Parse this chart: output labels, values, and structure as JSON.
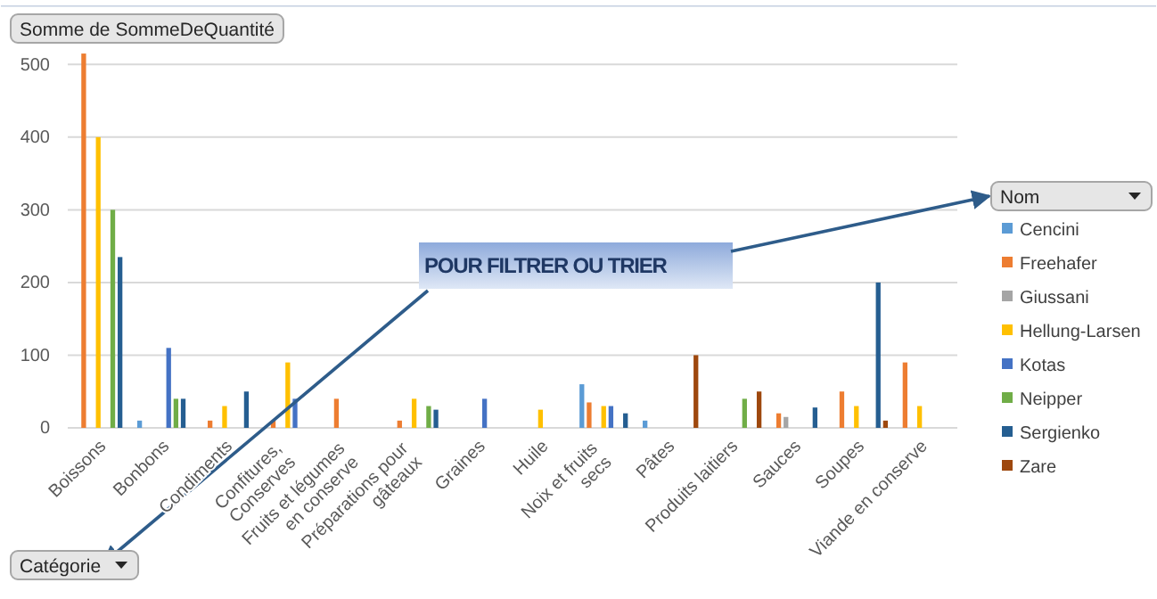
{
  "chart_data": {
    "type": "bar",
    "ylabel": "Somme de SommeDeQuantité",
    "xlabel": "Catégorie",
    "legend_title": "Nom",
    "annotations": [
      "POUR FILTRER OU TRIER"
    ],
    "categories": [
      "Boissons",
      "Bonbons",
      "Condiments",
      "Confitures, Conserves",
      "Fruits et légumes en conserve",
      "Préparations pour gâteaux",
      "Graines",
      "Huile",
      "Noix et fruits secs",
      "Pâtes",
      "Produits laitiers",
      "Sauces",
      "Soupes",
      "Viande en conserve"
    ],
    "series": [
      {
        "name": "Cencini",
        "color": "#5b9bd5",
        "values": [
          null,
          10,
          null,
          null,
          null,
          null,
          null,
          null,
          60,
          10,
          null,
          null,
          null,
          null
        ]
      },
      {
        "name": "Freehafer",
        "color": "#ed7d31",
        "values": [
          515,
          null,
          10,
          10,
          40,
          10,
          null,
          null,
          35,
          null,
          null,
          20,
          50,
          90
        ]
      },
      {
        "name": "Giussani",
        "color": "#a5a5a5",
        "values": [
          null,
          null,
          null,
          null,
          null,
          null,
          null,
          null,
          null,
          null,
          null,
          15,
          null,
          null
        ]
      },
      {
        "name": "Hellung-Larsen",
        "color": "#ffc000",
        "values": [
          400,
          null,
          30,
          90,
          null,
          40,
          null,
          25,
          30,
          null,
          null,
          null,
          30,
          30
        ]
      },
      {
        "name": "Kotas",
        "color": "#4472c4",
        "values": [
          null,
          110,
          null,
          40,
          null,
          null,
          40,
          null,
          30,
          null,
          null,
          null,
          null,
          null
        ]
      },
      {
        "name": "Neipper",
        "color": "#70ad47",
        "values": [
          300,
          40,
          null,
          null,
          null,
          30,
          null,
          null,
          null,
          null,
          40,
          null,
          null,
          null
        ]
      },
      {
        "name": "Sergienko",
        "color": "#255e91",
        "values": [
          235,
          40,
          50,
          null,
          null,
          25,
          null,
          null,
          20,
          null,
          null,
          28,
          200,
          null
        ]
      },
      {
        "name": "Zare",
        "color": "#9e480e",
        "values": [
          null,
          null,
          null,
          null,
          null,
          null,
          null,
          null,
          null,
          100,
          50,
          null,
          10,
          null
        ]
      }
    ],
    "ylim": [
      0,
      520
    ],
    "yticks": [
      0,
      100,
      200,
      300,
      400,
      500
    ],
    "grid": "y",
    "legend": "right"
  }
}
